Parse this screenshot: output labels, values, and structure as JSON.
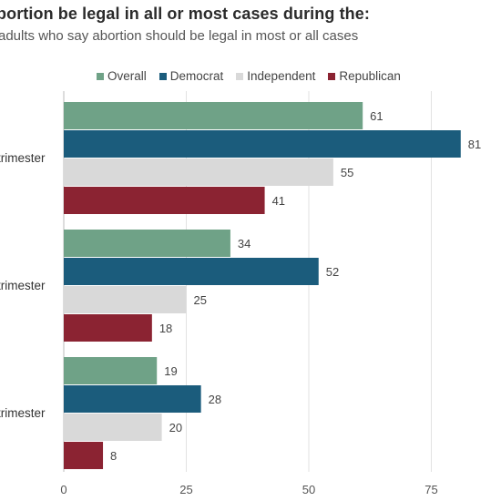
{
  "chart_data": {
    "type": "bar",
    "orientation": "horizontal",
    "title": "bortion be legal in all or most cases during the:",
    "subtitle": "adults who say abortion should be legal in most or all cases",
    "categories": [
      "trimester",
      "trimester",
      "trimester"
    ],
    "series": [
      {
        "name": "Overall",
        "color": "#6fa287",
        "values": [
          61,
          34,
          19
        ]
      },
      {
        "name": "Democrat",
        "color": "#1b5c7c",
        "values": [
          81,
          52,
          28
        ]
      },
      {
        "name": "Independent",
        "color": "#d9d9d9",
        "values": [
          55,
          25,
          20
        ]
      },
      {
        "name": "Republican",
        "color": "#8b2332",
        "values": [
          41,
          18,
          8
        ]
      }
    ],
    "xlim": [
      0,
      89
    ],
    "xticks": [
      0,
      25,
      50,
      75
    ],
    "grid": true,
    "legend_position": "top"
  }
}
